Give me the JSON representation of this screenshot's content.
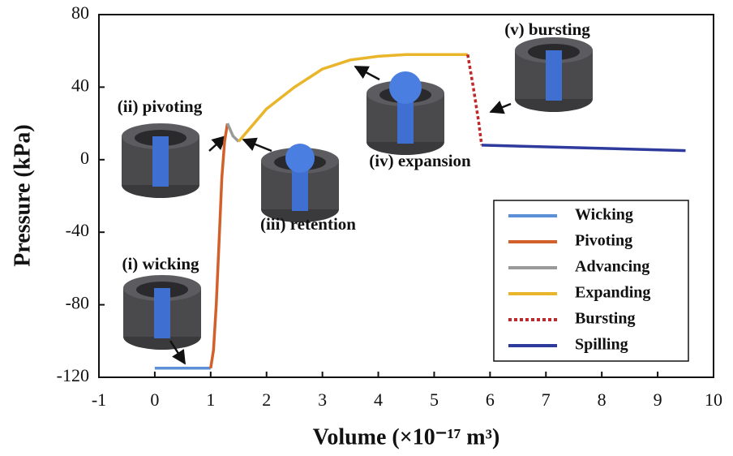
{
  "chart_data": {
    "type": "line",
    "x_label": "Volume (×10⁻¹⁷ m³)",
    "y_label": "Pressure (kPa)",
    "xlim": [
      -1,
      10
    ],
    "ylim": [
      -120,
      80
    ],
    "xticks": [
      -1,
      0,
      1,
      2,
      3,
      4,
      5,
      6,
      7,
      8,
      9,
      10
    ],
    "yticks": [
      -120,
      -80,
      -40,
      0,
      40,
      80
    ],
    "legend": "lower right",
    "annotations": [
      "(i) wicking",
      "(ii) pivoting",
      "(iii) retention",
      "(iv) expansion",
      "(v) bursting"
    ],
    "series": [
      {
        "name": "Wicking",
        "color": "#5b8fd6",
        "x": [
          0,
          1
        ],
        "values": [
          -115,
          -115
        ]
      },
      {
        "name": "Pivoting",
        "color": "#d2602a",
        "x": [
          1,
          1.05,
          1.1,
          1.15,
          1.2,
          1.25,
          1.3
        ],
        "values": [
          -115,
          -105,
          -80,
          -45,
          -10,
          10,
          20
        ]
      },
      {
        "name": "Advancing",
        "color": "#9a9a9a",
        "x": [
          1.3,
          1.4,
          1.5
        ],
        "values": [
          20,
          13,
          10
        ]
      },
      {
        "name": "Expanding",
        "color": "#e9b52a",
        "x": [
          1.5,
          2,
          2.5,
          3,
          3.5,
          4,
          4.5,
          5,
          5.6
        ],
        "values": [
          10,
          28,
          40,
          50,
          55,
          57,
          58,
          58,
          58
        ]
      },
      {
        "name": "Bursting",
        "color": "#c0282a",
        "dashed": true,
        "x": [
          5.6,
          5.7,
          5.8,
          5.85
        ],
        "values": [
          58,
          40,
          20,
          8
        ]
      },
      {
        "name": "Spilling",
        "color": "#2e3a9c",
        "x": [
          5.85,
          9.5
        ],
        "values": [
          8,
          5
        ]
      }
    ]
  }
}
